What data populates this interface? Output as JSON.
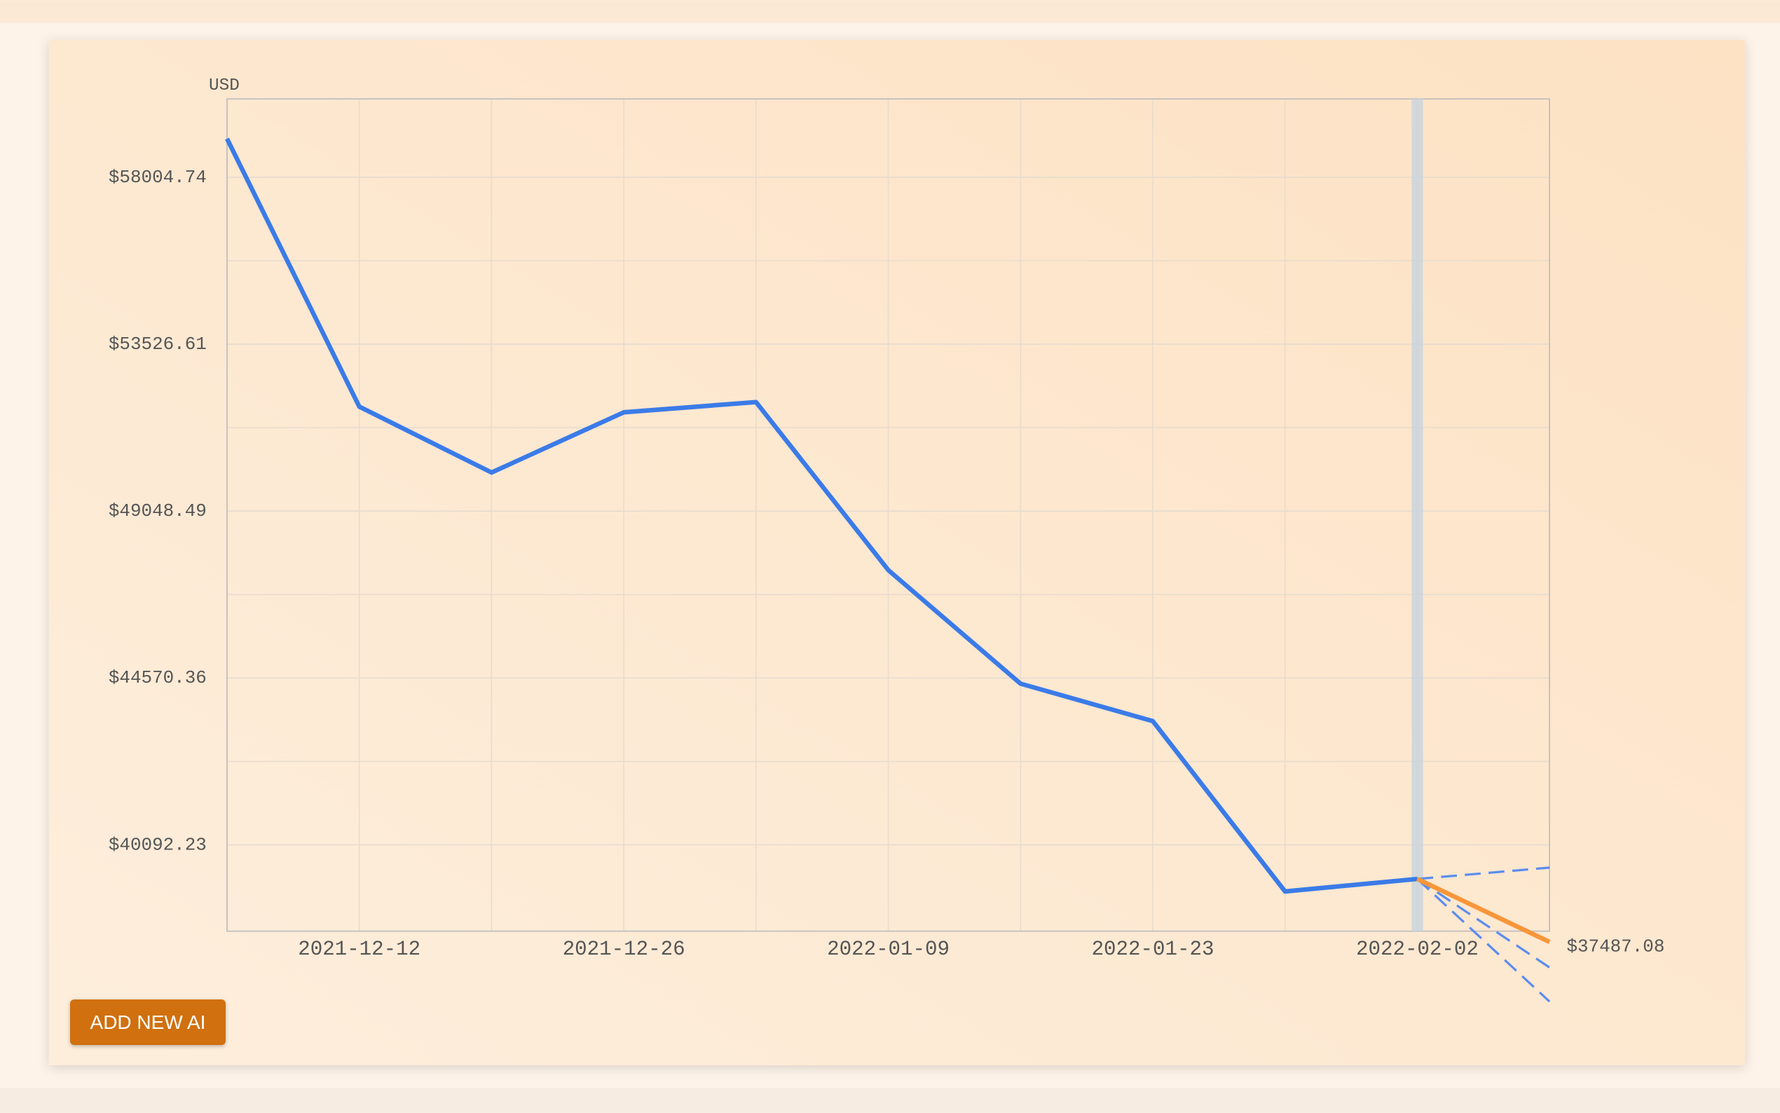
{
  "chart_data": {
    "type": "line",
    "y_label": "USD",
    "categories": [
      null,
      "2021-12-12",
      null,
      "2021-12-26",
      null,
      "2022-01-09",
      null,
      "2022-01-23",
      null,
      "2022-02-02",
      null
    ],
    "series": [
      {
        "color": "#3b7be8",
        "dash": false,
        "values": [
          59040,
          51851,
          50084,
          51699,
          51973,
          47465,
          44418,
          43413,
          38843,
          39178,
          null
        ]
      },
      {
        "color": "#5b8def",
        "dash": true,
        "values": [
          null,
          null,
          null,
          null,
          null,
          null,
          null,
          null,
          null,
          39178,
          39483
        ]
      },
      {
        "color": "#5b8def",
        "dash": true,
        "values": [
          null,
          null,
          null,
          null,
          null,
          null,
          null,
          null,
          null,
          39178,
          36802
        ]
      },
      {
        "color": "#5b8def",
        "dash": true,
        "values": [
          null,
          null,
          null,
          null,
          null,
          null,
          null,
          null,
          null,
          39178,
          35888
        ]
      },
      {
        "color": "#f7963a",
        "dash": false,
        "values": [
          null,
          null,
          null,
          null,
          null,
          null,
          null,
          null,
          null,
          39178,
          37487.08
        ],
        "value_labels": [
          null,
          null,
          null,
          null,
          null,
          null,
          null,
          null,
          null,
          null,
          "$37487.08"
        ]
      }
    ],
    "ylim": [
      37777,
      60107
    ],
    "yticks": [
      {
        "value": 58004.74,
        "label": "$58004.74"
      },
      {
        "value": 53526.61,
        "label": "$53526.61"
      },
      {
        "value": 49048.49,
        "label": "$49048.49"
      },
      {
        "value": 44570.36,
        "label": "$44570.36"
      },
      {
        "value": 40092.23,
        "label": "$40092.23"
      }
    ],
    "y_minor_ticks": [
      55765.68,
      51287.55,
      46809.43,
      42331.3
    ],
    "grid": true
  },
  "button": "ADD NEW AI"
}
